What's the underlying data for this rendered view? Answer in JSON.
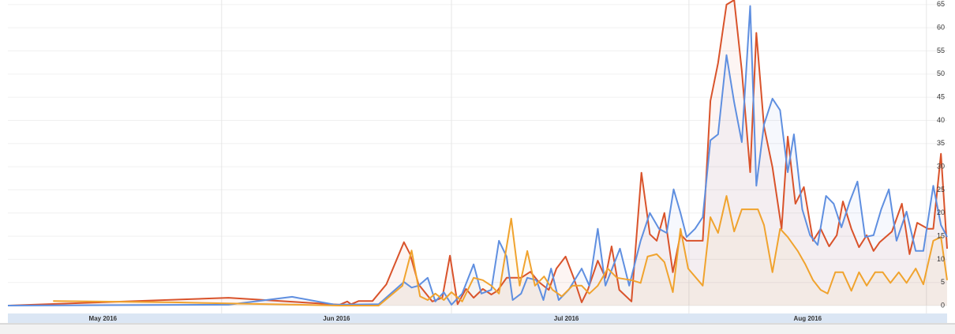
{
  "chart_data": {
    "type": "line",
    "xlim": [
      3.1,
      125.7
    ],
    "ylim": [
      -1.7,
      66
    ],
    "xticks": [
      {
        "value": 15.5,
        "label": "May 2016"
      },
      {
        "value": 46,
        "label": "Jun 2016"
      },
      {
        "value": 76,
        "label": "Jul 2016"
      },
      {
        "value": 107.5,
        "label": "Aug 2016"
      }
    ],
    "xgrid": [
      31,
      61,
      92,
      123
    ],
    "yticks": [
      0,
      5,
      10,
      15,
      20,
      25,
      30,
      35,
      40,
      45,
      50,
      55,
      60,
      65
    ],
    "grid": true,
    "area": true,
    "series": [
      {
        "color": "#d9532b",
        "x": [
          3.1,
          31.9,
          46.4,
          47.4,
          47.9,
          48.9,
          50.7,
          52.5,
          54.8,
          55.6,
          56.7,
          58.5,
          59.8,
          60.8,
          61.8,
          62.9,
          63.9,
          65.1,
          66.2,
          67.0,
          68.2,
          70.1,
          71.3,
          72.4,
          73.7,
          74.7,
          75.9,
          77.0,
          78.0,
          78.8,
          80.1,
          81.1,
          81.9,
          82.9,
          84.5,
          85.8,
          86.9,
          87.8,
          88.8,
          89.9,
          90.9,
          91.7,
          93.8,
          94.8,
          95.8,
          96.9,
          97.9,
          98.9,
          100.0,
          100.8,
          101.8,
          102.9,
          104.1,
          104.9,
          105.9,
          107.0,
          108.2,
          109.2,
          110.3,
          111.3,
          112.1,
          113.2,
          114.2,
          115.2,
          116.1,
          116.9,
          118.5,
          119.8,
          120.8,
          121.8,
          123.2,
          123.9,
          124.9,
          125.7
        ],
        "values": [
          0,
          1.7,
          0.2,
          0.9,
          0.3,
          1.0,
          1.0,
          4.6,
          13.7,
          11.1,
          4.6,
          0.9,
          1.7,
          10.8,
          0.3,
          3.6,
          1.7,
          3.6,
          2.4,
          3.2,
          6.0,
          6.0,
          7.3,
          5.1,
          3.4,
          8.0,
          10.6,
          5.8,
          0.7,
          3.4,
          9.7,
          6.0,
          12.8,
          3.4,
          0.9,
          28.7,
          15.4,
          14.0,
          20.0,
          7.2,
          15.4,
          14.0,
          14.0,
          44.2,
          52.4,
          65.0,
          66.0,
          50.7,
          28.8,
          58.9,
          38.7,
          29.9,
          16.6,
          36.5,
          22.0,
          25.6,
          14.0,
          16.6,
          12.8,
          15.2,
          22.5,
          16.6,
          12.6,
          15.2,
          11.8,
          13.7,
          16.0,
          22.0,
          11.1,
          17.9,
          16.6,
          16.6,
          32.8,
          12.3
        ]
      },
      {
        "color": "#5f8fe0",
        "x": [
          3.1,
          31.9,
          40.2,
          45.8,
          51.5,
          54.8,
          55.8,
          56.7,
          57.9,
          58.9,
          60.0,
          61.0,
          62.4,
          63.9,
          64.9,
          66.2,
          67.2,
          68.2,
          69.0,
          70.1,
          70.9,
          72.1,
          73.0,
          74.0,
          75.0,
          76.3,
          78.0,
          79.0,
          80.1,
          81.1,
          83.0,
          84.2,
          85.7,
          86.9,
          88.1,
          89.1,
          90.0,
          90.9,
          91.7,
          92.8,
          93.8,
          94.8,
          95.8,
          96.9,
          97.9,
          98.9,
          100.0,
          100.8,
          101.8,
          102.9,
          103.9,
          104.9,
          105.7,
          106.8,
          107.8,
          108.8,
          109.9,
          110.9,
          111.9,
          113.0,
          114.0,
          115.0,
          116.1,
          117.1,
          118.1,
          119.1,
          120.4,
          121.6,
          122.6,
          123.9,
          124.9,
          125.7
        ],
        "values": [
          0,
          0.2,
          1.9,
          0.2,
          0.3,
          5.1,
          3.9,
          4.3,
          6.0,
          0.9,
          2.9,
          0.2,
          2.6,
          8.9,
          2.6,
          3.4,
          14.0,
          10.6,
          1.2,
          2.6,
          6.0,
          5.5,
          1.2,
          8.0,
          1.2,
          3.4,
          8.0,
          4.3,
          16.6,
          4.3,
          12.3,
          4.3,
          14.0,
          20.0,
          16.6,
          15.7,
          25.1,
          20.0,
          14.8,
          16.6,
          19.1,
          35.7,
          37.0,
          54.1,
          43.9,
          35.3,
          64.7,
          25.9,
          39.1,
          44.7,
          42.2,
          28.8,
          37.0,
          20.8,
          15.2,
          13.1,
          23.7,
          22.0,
          16.9,
          22.5,
          26.8,
          14.8,
          15.2,
          20.8,
          25.1,
          14.0,
          20.3,
          11.8,
          11.8,
          25.9,
          17.4,
          14.8
        ]
      },
      {
        "color": "#f0a32e",
        "x": [
          9.0,
          24.7,
          46.4,
          51.5,
          54.6,
          55.8,
          56.9,
          57.9,
          58.9,
          60.0,
          61.0,
          62.4,
          63.9,
          65.1,
          66.2,
          67.2,
          68.8,
          69.9,
          70.9,
          71.9,
          73.1,
          74.2,
          75.4,
          76.8,
          78.0,
          79.0,
          80.1,
          81.4,
          82.6,
          84.5,
          85.7,
          86.6,
          87.8,
          88.8,
          89.9,
          90.9,
          91.9,
          93.8,
          94.8,
          95.8,
          96.9,
          97.9,
          98.9,
          100.0,
          101.0,
          101.8,
          102.9,
          103.9,
          104.9,
          106.2,
          107.2,
          108.2,
          109.2,
          110.1,
          111.1,
          112.1,
          113.2,
          114.2,
          115.2,
          116.3,
          117.3,
          118.3,
          119.4,
          120.4,
          121.6,
          122.6,
          123.9,
          124.9,
          125.7
        ],
        "values": [
          1.0,
          0.7,
          0,
          0,
          4.3,
          11.9,
          2.0,
          1.2,
          2.6,
          1.2,
          2.9,
          0.9,
          6.0,
          5.5,
          4.3,
          2.6,
          18.8,
          4.3,
          11.8,
          4.3,
          6.3,
          3.4,
          2.0,
          4.3,
          4.3,
          2.6,
          4.3,
          8.0,
          6.0,
          5.5,
          4.9,
          10.6,
          11.1,
          9.4,
          2.9,
          16.6,
          8.0,
          4.3,
          19.1,
          15.7,
          23.7,
          16.0,
          20.8,
          20.8,
          20.8,
          17.4,
          7.2,
          16.6,
          14.8,
          11.8,
          8.9,
          5.5,
          3.4,
          2.6,
          7.2,
          7.2,
          3.2,
          7.2,
          4.3,
          7.2,
          7.2,
          4.9,
          7.2,
          4.9,
          8.0,
          4.6,
          14.0,
          14.8,
          5.5
        ]
      }
    ]
  }
}
